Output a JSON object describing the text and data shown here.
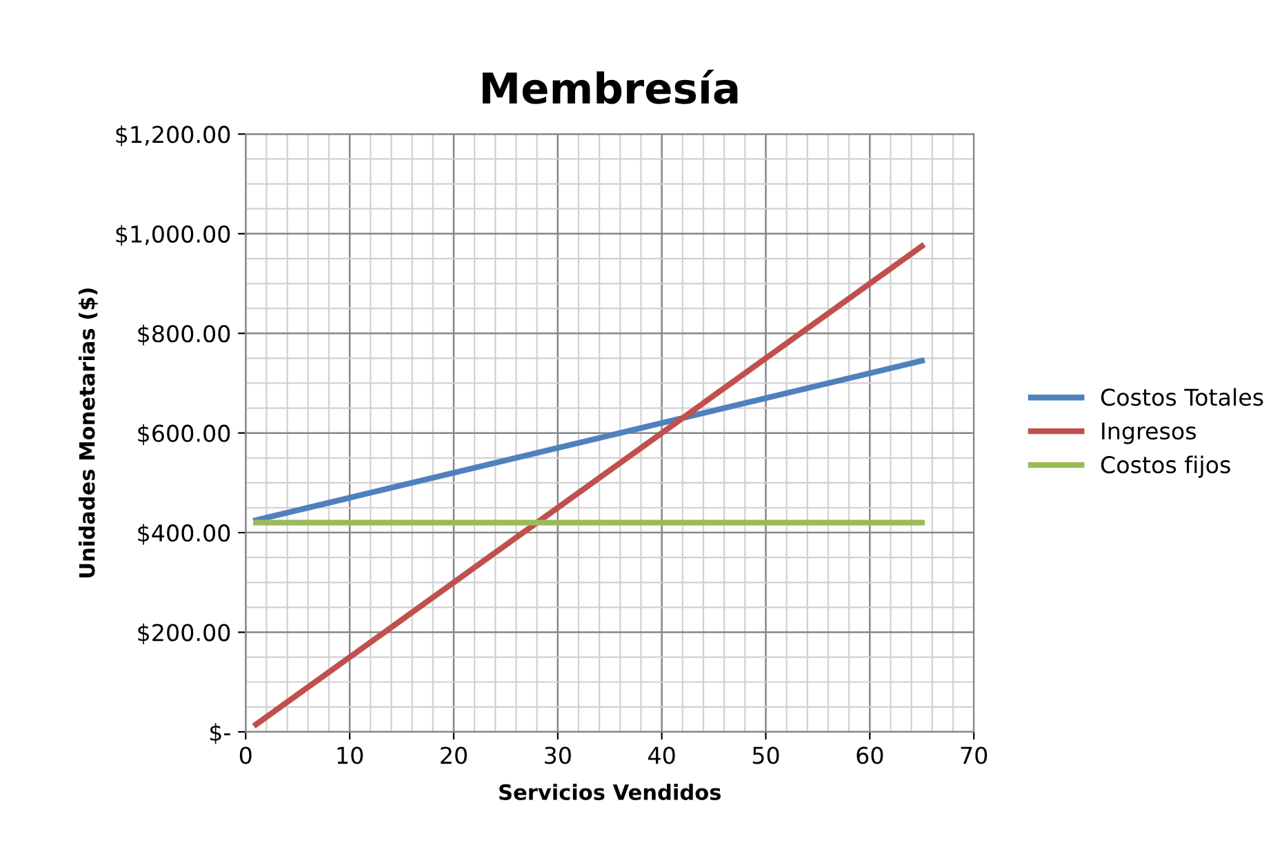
{
  "chart_data": {
    "type": "line",
    "title": "Membresía",
    "xlabel": "Servicios Vendidos",
    "ylabel": "Unidades Monetarias ($)",
    "x": [
      1,
      65
    ],
    "series": [
      {
        "name": "Costos Totales",
        "color": "#4f81bd",
        "values": [
          425,
          745
        ]
      },
      {
        "name": "Ingresos",
        "color": "#c0504d",
        "values": [
          15,
          975
        ]
      },
      {
        "name": "Costos fijos",
        "color": "#9bbb59",
        "values": [
          420,
          420
        ]
      }
    ],
    "xlim": [
      0,
      70
    ],
    "xticks": [
      0,
      10,
      20,
      30,
      40,
      50,
      60,
      70
    ],
    "ylim": [
      0,
      1200
    ],
    "yticks": [
      {
        "value": 0,
        "label": "$-"
      },
      {
        "value": 200,
        "label": "$200.00"
      },
      {
        "value": 400,
        "label": "$400.00"
      },
      {
        "value": 600,
        "label": "$600.00"
      },
      {
        "value": 800,
        "label": "$800.00"
      },
      {
        "value": 1000,
        "label": "$1,000.00"
      },
      {
        "value": 1200,
        "label": "$1,200.00"
      }
    ],
    "grid": true,
    "legend": "right",
    "marker": "none",
    "line_style": "solid"
  }
}
